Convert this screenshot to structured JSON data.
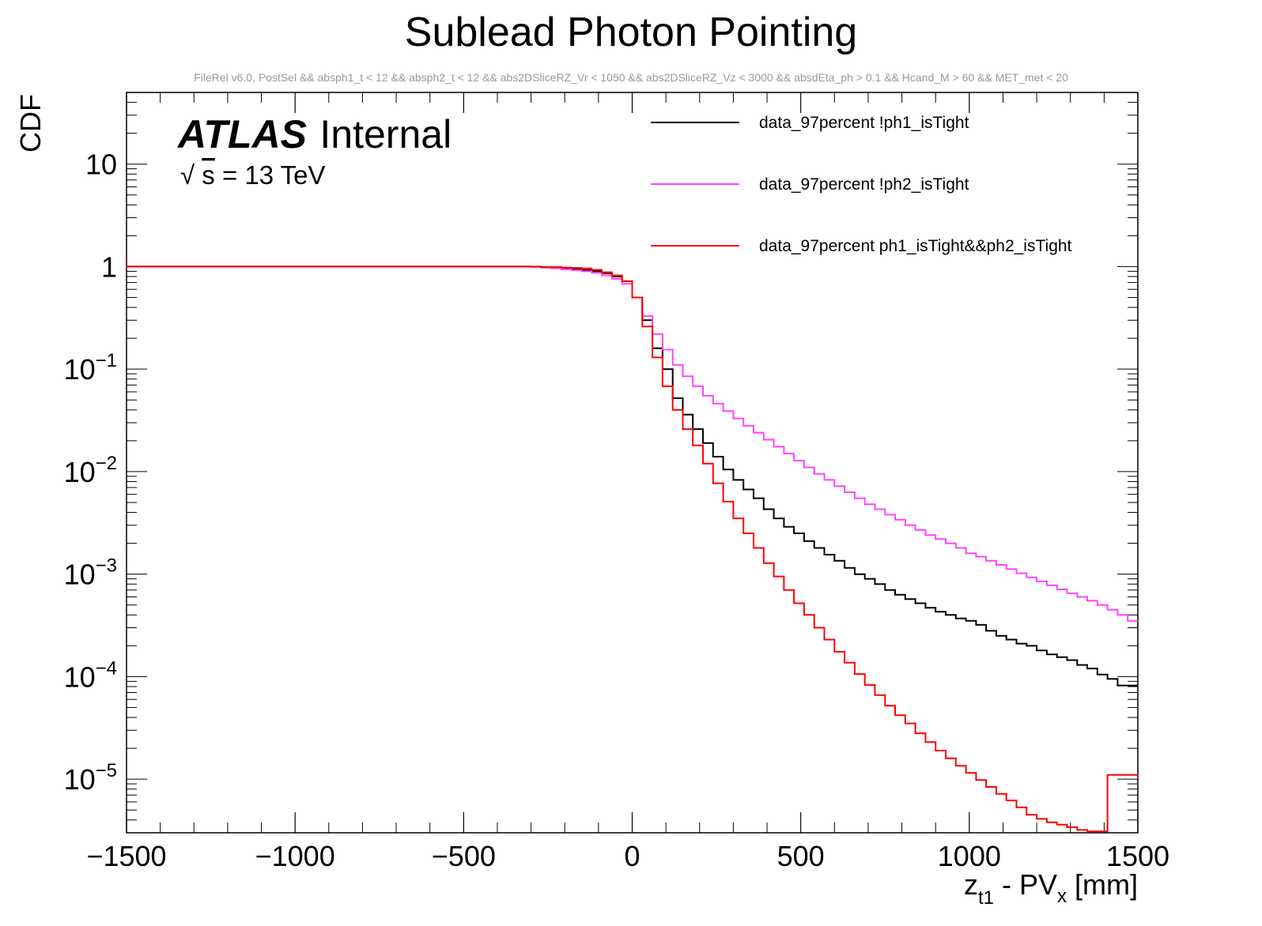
{
  "chart_data": {
    "type": "line",
    "subtype": "step-histogram",
    "title": "Sublead Photon Pointing",
    "subtitle": "FileRel v6.0, PostSel &&  absph1_t < 12 && absph2_t < 12 && abs2DSliceRZ_Vr < 1050 && abs2DSliceRZ_Vz < 3000 && absdEta_ph > 0.1 && Hcand_M > 60 && MET_met < 20",
    "xlabel": "z_{t1} - PV_{x} [mm]",
    "xlabel_parts": {
      "main": "z",
      "sub1": "t1",
      "mid": " - PV",
      "sub2": "x",
      "unit": " [mm]"
    },
    "ylabel": "CDF",
    "xlim": [
      -1500,
      1500
    ],
    "ylim": [
      3e-06,
      50
    ],
    "yscale": "log",
    "x_ticks": [
      -1500,
      -1000,
      -500,
      0,
      500,
      1000,
      1500
    ],
    "x_tick_labels": [
      "−1500",
      "−1000",
      "−500",
      "0",
      "500",
      "1000",
      "1500"
    ],
    "y_ticks": [
      {
        "value": 10,
        "base": "10",
        "exp": ""
      },
      {
        "value": 1,
        "base": "1",
        "exp": ""
      },
      {
        "value": 0.1,
        "base": "10",
        "exp": "−1"
      },
      {
        "value": 0.01,
        "base": "10",
        "exp": "−2"
      },
      {
        "value": 0.001,
        "base": "10",
        "exp": "−3"
      },
      {
        "value": 0.0001,
        "base": "10",
        "exp": "−4"
      },
      {
        "value": 1e-05,
        "base": "10",
        "exp": "−5"
      }
    ],
    "annotations": {
      "experiment": "ATLAS",
      "status": "Internal",
      "energy_sqrt": "√",
      "energy_s": "s",
      "energy_rest": " = 13 TeV"
    },
    "legend_position": "top-right",
    "bin_edges_start": -1500,
    "bin_width": 30,
    "series": [
      {
        "name": "data_97percent !ph1_isTight",
        "color": "#000000",
        "x": [
          -1500,
          -600,
          -300,
          -270,
          -240,
          -210,
          -180,
          -150,
          -120,
          -90,
          -60,
          -30,
          0,
          30,
          60,
          90,
          120,
          150,
          180,
          210,
          240,
          270,
          300,
          330,
          360,
          390,
          420,
          450,
          480,
          510,
          540,
          570,
          600,
          630,
          660,
          690,
          720,
          750,
          780,
          810,
          840,
          870,
          900,
          930,
          960,
          990,
          1020,
          1050,
          1080,
          1110,
          1140,
          1170,
          1200,
          1230,
          1260,
          1290,
          1320,
          1350,
          1380,
          1410,
          1440,
          1470,
          1500
        ],
        "y": [
          1.0,
          1.0,
          0.99,
          0.98,
          0.97,
          0.96,
          0.95,
          0.93,
          0.9,
          0.86,
          0.8,
          0.72,
          0.5,
          0.3,
          0.16,
          0.1,
          0.052,
          0.036,
          0.026,
          0.019,
          0.014,
          0.0105,
          0.0083,
          0.0067,
          0.0055,
          0.0043,
          0.0035,
          0.0029,
          0.0025,
          0.0021,
          0.0018,
          0.00155,
          0.00135,
          0.00115,
          0.001,
          0.0009,
          0.0008,
          0.0007,
          0.00063,
          0.00057,
          0.00052,
          0.00047,
          0.00043,
          0.0004,
          0.00037,
          0.00035,
          0.00032,
          0.00028,
          0.00025,
          0.00023,
          0.00021,
          0.0002,
          0.00018,
          0.000165,
          0.000155,
          0.000145,
          0.00013,
          0.00012,
          0.000105,
          9.5e-05,
          8.2e-05,
          8.2e-05,
          8.2e-05
        ]
      },
      {
        "name": "data_97percent !ph2_isTight",
        "color": "#ff44ff",
        "x": [
          -1500,
          -600,
          -300,
          -270,
          -240,
          -210,
          -180,
          -150,
          -120,
          -90,
          -60,
          -30,
          0,
          30,
          60,
          90,
          120,
          150,
          180,
          210,
          240,
          270,
          300,
          330,
          360,
          390,
          420,
          450,
          480,
          510,
          540,
          570,
          600,
          630,
          660,
          690,
          720,
          750,
          780,
          810,
          840,
          870,
          900,
          930,
          960,
          990,
          1020,
          1050,
          1080,
          1110,
          1140,
          1170,
          1200,
          1230,
          1260,
          1290,
          1320,
          1350,
          1380,
          1410,
          1440,
          1470,
          1500
        ],
        "y": [
          1.0,
          1.0,
          0.99,
          0.98,
          0.96,
          0.94,
          0.92,
          0.9,
          0.87,
          0.82,
          0.76,
          0.68,
          0.5,
          0.33,
          0.22,
          0.155,
          0.11,
          0.085,
          0.068,
          0.055,
          0.046,
          0.039,
          0.033,
          0.028,
          0.024,
          0.0205,
          0.0175,
          0.015,
          0.0128,
          0.011,
          0.0095,
          0.0083,
          0.0072,
          0.0063,
          0.0055,
          0.0048,
          0.0043,
          0.0038,
          0.0034,
          0.003,
          0.0027,
          0.0024,
          0.0022,
          0.002,
          0.0018,
          0.0016,
          0.00148,
          0.00135,
          0.00123,
          0.00112,
          0.00102,
          0.00093,
          0.00085,
          0.00078,
          0.00071,
          0.00065,
          0.0006,
          0.00055,
          0.0005,
          0.00045,
          0.0004,
          0.00035,
          0.00033
        ]
      },
      {
        "name": "data_97percent ph1_isTight&&ph2_isTight",
        "color": "#ff0000",
        "x": [
          -1500,
          -600,
          -300,
          -270,
          -240,
          -210,
          -180,
          -150,
          -120,
          -90,
          -60,
          -30,
          0,
          30,
          60,
          90,
          120,
          150,
          180,
          210,
          240,
          270,
          300,
          330,
          360,
          390,
          420,
          450,
          480,
          510,
          540,
          570,
          600,
          630,
          660,
          690,
          720,
          750,
          780,
          810,
          840,
          870,
          900,
          930,
          960,
          990,
          1020,
          1050,
          1080,
          1110,
          1140,
          1170,
          1200,
          1230,
          1260,
          1290,
          1320,
          1350,
          1380,
          1410,
          1440,
          1470,
          1500
        ],
        "y": [
          1.0,
          1.0,
          1.0,
          0.99,
          0.99,
          0.98,
          0.97,
          0.96,
          0.93,
          0.88,
          0.82,
          0.72,
          0.5,
          0.26,
          0.13,
          0.068,
          0.04,
          0.026,
          0.018,
          0.012,
          0.0077,
          0.0051,
          0.0035,
          0.0025,
          0.0018,
          0.00128,
          0.00095,
          0.0007,
          0.00052,
          0.0004,
          0.0003,
          0.00023,
          0.000175,
          0.000137,
          0.000106,
          8.3e-05,
          6.6e-05,
          5.2e-05,
          4.2e-05,
          3.5e-05,
          2.8e-05,
          2.3e-05,
          1.9e-05,
          1.6e-05,
          1.35e-05,
          1.15e-05,
          9.8e-06,
          8.4e-06,
          7.2e-06,
          6.2e-06,
          5.3e-06,
          4.5e-06,
          4.1e-06,
          3.8e-06,
          3.6e-06,
          3.4e-06,
          3.2e-06,
          3.1e-06,
          3.1e-06,
          1.1e-05,
          1.1e-05,
          1.1e-05,
          1.1e-05
        ]
      }
    ]
  }
}
